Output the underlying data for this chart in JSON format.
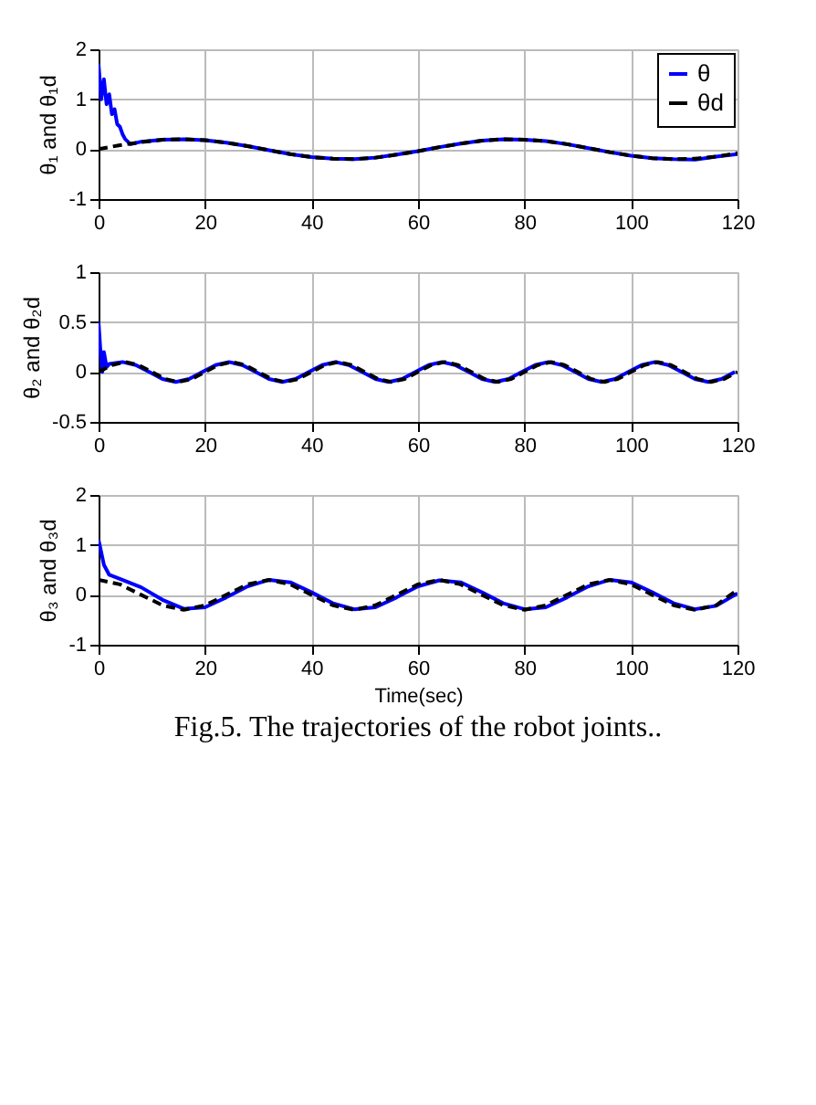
{
  "chart_data": [
    {
      "type": "line",
      "ylabel": "θ₁ and θ₁d",
      "xlim": [
        0,
        120
      ],
      "xticks": [
        0,
        20,
        40,
        60,
        80,
        100,
        120
      ],
      "ylim": [
        -1,
        2
      ],
      "yticks": [
        -1,
        0,
        1,
        2
      ],
      "grid": true,
      "legend": "top right",
      "series": [
        {
          "name": "θ",
          "color": "#0000ff",
          "line_style": "solid",
          "x": [
            0,
            0.5,
            1,
            1.5,
            2,
            2.5,
            3,
            3.5,
            4,
            4.5,
            5,
            6,
            8,
            12,
            16,
            20,
            24,
            28,
            32,
            36,
            40,
            44,
            48,
            52,
            56,
            60,
            64,
            68,
            72,
            76,
            80,
            84,
            88,
            92,
            96,
            100,
            104,
            108,
            112,
            116,
            120
          ],
          "values": [
            1.7,
            1.0,
            1.4,
            0.9,
            1.1,
            0.7,
            0.8,
            0.5,
            0.45,
            0.3,
            0.2,
            0.1,
            0.15,
            0.19,
            0.2,
            0.18,
            0.13,
            0.06,
            -0.02,
            -0.1,
            -0.16,
            -0.19,
            -0.2,
            -0.17,
            -0.11,
            -0.04,
            0.04,
            0.11,
            0.17,
            0.2,
            0.19,
            0.16,
            0.1,
            0.02,
            -0.06,
            -0.13,
            -0.18,
            -0.2,
            -0.21,
            -0.15,
            -0.1
          ]
        },
        {
          "name": "θd",
          "color": "#000000",
          "line_style": "dashed",
          "x": [
            0,
            4,
            8,
            12,
            16,
            20,
            24,
            28,
            32,
            36,
            40,
            44,
            48,
            52,
            56,
            60,
            64,
            68,
            72,
            76,
            80,
            84,
            88,
            92,
            96,
            100,
            104,
            108,
            112,
            116,
            120
          ],
          "values": [
            0,
            0.08,
            0.14,
            0.19,
            0.2,
            0.18,
            0.13,
            0.06,
            -0.02,
            -0.1,
            -0.16,
            -0.19,
            -0.2,
            -0.17,
            -0.11,
            -0.04,
            0.04,
            0.11,
            0.17,
            0.2,
            0.19,
            0.16,
            0.1,
            0.02,
            -0.06,
            -0.13,
            -0.18,
            -0.2,
            -0.19,
            -0.15,
            -0.08
          ]
        }
      ]
    },
    {
      "type": "line",
      "ylabel": "θ₂ and θ₂d",
      "xlim": [
        0,
        120
      ],
      "xticks": [
        0,
        20,
        40,
        60,
        80,
        100,
        120
      ],
      "ylim": [
        -0.5,
        1
      ],
      "yticks": [
        -0.5,
        0,
        0.5,
        1
      ],
      "grid": true,
      "series": [
        {
          "color": "#0000ff",
          "line_style": "solid",
          "x": [
            0,
            0.3,
            0.7,
            1,
            1.5,
            2,
            4.5,
            7,
            9.5,
            12,
            14.5,
            17,
            19.5,
            22,
            24.5,
            27,
            29.5,
            32,
            34.5,
            37,
            39.5,
            42,
            44.5,
            47,
            49.5,
            52,
            54.5,
            57,
            59.5,
            62,
            64.5,
            67,
            69.5,
            72,
            74.5,
            77,
            79.5,
            82,
            84.5,
            87,
            89.5,
            92,
            94.5,
            97,
            99.5,
            102,
            104.5,
            107,
            109.5,
            112,
            114.5,
            117,
            119.5
          ],
          "values": [
            0.5,
            0.25,
            0.0,
            0.2,
            0.05,
            0.08,
            0.1,
            0.07,
            0,
            -0.07,
            -0.1,
            -0.07,
            0,
            0.07,
            0.1,
            0.07,
            0,
            -0.07,
            -0.1,
            -0.07,
            0,
            0.07,
            0.1,
            0.07,
            0,
            -0.07,
            -0.1,
            -0.07,
            0,
            0.07,
            0.1,
            0.07,
            0,
            -0.07,
            -0.1,
            -0.07,
            0,
            0.07,
            0.1,
            0.07,
            0,
            -0.07,
            -0.1,
            -0.07,
            0,
            0.07,
            0.1,
            0.07,
            0,
            -0.07,
            -0.1,
            -0.07,
            0
          ]
        },
        {
          "color": "#000000",
          "line_style": "dashed",
          "x": [
            0,
            2.5,
            5,
            7.5,
            10,
            12.5,
            15,
            17.5,
            20,
            22.5,
            25,
            27.5,
            30,
            32.5,
            35,
            37.5,
            40,
            42.5,
            45,
            47.5,
            50,
            52.5,
            55,
            57.5,
            60,
            62.5,
            65,
            67.5,
            70,
            72.5,
            75,
            77.5,
            80,
            82.5,
            85,
            87.5,
            90,
            92.5,
            95,
            97.5,
            100,
            102.5,
            105,
            107.5,
            110,
            112.5,
            115,
            117.5,
            120
          ],
          "values": [
            0,
            0.07,
            0.1,
            0.07,
            0,
            -0.07,
            -0.1,
            -0.07,
            0,
            0.07,
            0.1,
            0.07,
            0,
            -0.07,
            -0.1,
            -0.07,
            0,
            0.07,
            0.1,
            0.07,
            0,
            -0.07,
            -0.1,
            -0.07,
            0,
            0.07,
            0.1,
            0.07,
            0,
            -0.07,
            -0.1,
            -0.07,
            0,
            0.07,
            0.1,
            0.07,
            0,
            -0.07,
            -0.1,
            -0.07,
            0,
            0.07,
            0.1,
            0.07,
            0,
            -0.07,
            -0.1,
            -0.07,
            0
          ]
        }
      ]
    },
    {
      "type": "line",
      "ylabel": "θ₃ and θ₃d",
      "xlabel": "Time(sec)",
      "xlim": [
        0,
        120
      ],
      "xticks": [
        0,
        20,
        40,
        60,
        80,
        100,
        120
      ],
      "ylim": [
        -1,
        2
      ],
      "yticks": [
        -1,
        0,
        1,
        2
      ],
      "grid": true,
      "annotations": [
        "Fig.5. The trajectories of the robot joints.."
      ],
      "series": [
        {
          "color": "#0000ff",
          "line_style": "solid",
          "x": [
            0,
            1,
            2,
            4,
            8,
            12,
            16,
            20,
            24,
            28,
            32,
            36,
            40,
            44,
            48,
            52,
            56,
            60,
            64,
            68,
            72,
            76,
            80,
            84,
            88,
            92,
            96,
            100,
            104,
            108,
            112,
            116,
            120
          ],
          "values": [
            1.1,
            0.6,
            0.4,
            0.32,
            0.15,
            -0.1,
            -0.28,
            -0.25,
            -0.05,
            0.17,
            0.3,
            0.25,
            0.05,
            -0.17,
            -0.29,
            -0.25,
            -0.05,
            0.17,
            0.29,
            0.25,
            0.05,
            -0.17,
            -0.29,
            -0.25,
            -0.05,
            0.17,
            0.3,
            0.25,
            0.05,
            -0.17,
            -0.29,
            -0.22,
            0.03
          ]
        },
        {
          "color": "#000000",
          "line_style": "dashed",
          "x": [
            0,
            4,
            8,
            12,
            16,
            20,
            24,
            28,
            32,
            36,
            40,
            44,
            48,
            52,
            56,
            60,
            64,
            68,
            72,
            76,
            80,
            84,
            88,
            92,
            96,
            100,
            104,
            108,
            112,
            116,
            120
          ],
          "values": [
            0.3,
            0.21,
            0,
            -0.21,
            -0.3,
            -0.21,
            0,
            0.21,
            0.3,
            0.21,
            0,
            -0.21,
            -0.3,
            -0.21,
            0,
            0.21,
            0.3,
            0.21,
            0,
            -0.21,
            -0.3,
            -0.21,
            0,
            0.21,
            0.3,
            0.21,
            0,
            -0.21,
            -0.3,
            -0.21,
            0.1
          ]
        }
      ]
    }
  ]
}
